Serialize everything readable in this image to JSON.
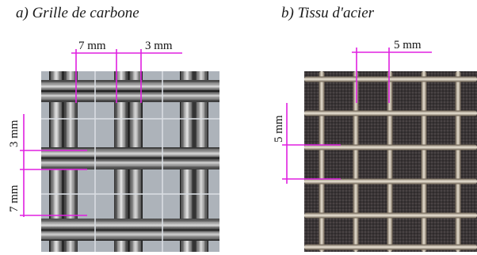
{
  "figure": {
    "panel_a": {
      "caption": "a) Grille de carbone",
      "dimensions": {
        "top_left": "7 mm",
        "top_right": "3 mm",
        "side_top": "3 mm",
        "side_bottom": "7 mm"
      }
    },
    "panel_b": {
      "caption": "b) Tissu d'acier",
      "dimensions": {
        "top": "5 mm",
        "side": "5 mm"
      }
    },
    "annotation_color": "#e020e0"
  }
}
